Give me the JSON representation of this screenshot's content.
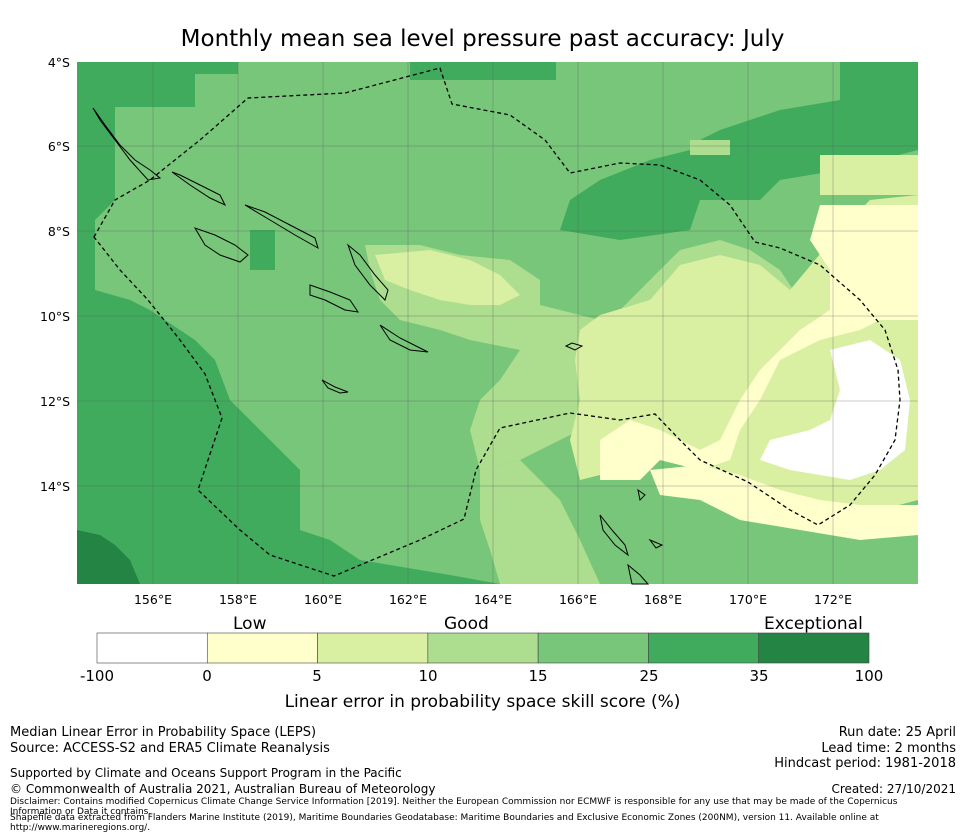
{
  "title": "Monthly mean sea level pressure past accuracy: July",
  "map": {
    "lat_labels": [
      "4°S",
      "6°S",
      "8°S",
      "10°S",
      "12°S",
      "14°S"
    ],
    "lon_labels": [
      "156°E",
      "158°E",
      "160°E",
      "162°E",
      "164°E",
      "166°E",
      "168°E",
      "170°E",
      "172°E"
    ],
    "region": "Solomon Islands and Vanuatu, South Pacific",
    "land_outline_color": "#000000",
    "eez_boundary_style": "dashed"
  },
  "colorbar": {
    "categories": [
      "Low",
      "Good",
      "Exceptional"
    ],
    "ticks": [
      "-100",
      "0",
      "5",
      "10",
      "15",
      "25",
      "35",
      "100"
    ],
    "colors": [
      "#ffffff",
      "#ffffcc",
      "#d9f0a3",
      "#addd8e",
      "#78c679",
      "#41ab5d",
      "#238443"
    ],
    "title": "Linear error in probability space skill score (%)"
  },
  "footer": {
    "left_line1": "Median Linear Error in Probability Space (LEPS)",
    "left_line2": "Source: ACCESS-S2 and ERA5 Climate Reanalysis",
    "support": "Supported by Climate and Oceans Support Program in the Pacific",
    "copyright": "© Commonwealth of Australia 2021, Australian Bureau of Meteorology",
    "disclaimer": "Disclaimer: Contains modified Copernicus Climate Change Service Information [2019]. Neither the European Commission nor ECMWF is responsible for any use that may be made of the Copernicus Information or Data it contains.",
    "shapefile": "Shapefile data extracted from Flanders Marine Institute (2019), Maritime Boundaries Geodatabase: Maritime Boundaries and Exclusive Economic Zones (200NM), version 11. Available online at http://www.marineregions.org/.",
    "run_date": "Run date: 25 April",
    "lead_time": "Lead time: 2 months",
    "hindcast": "Hindcast period: 1981-2018",
    "created": "Created: 27/10/2021"
  }
}
